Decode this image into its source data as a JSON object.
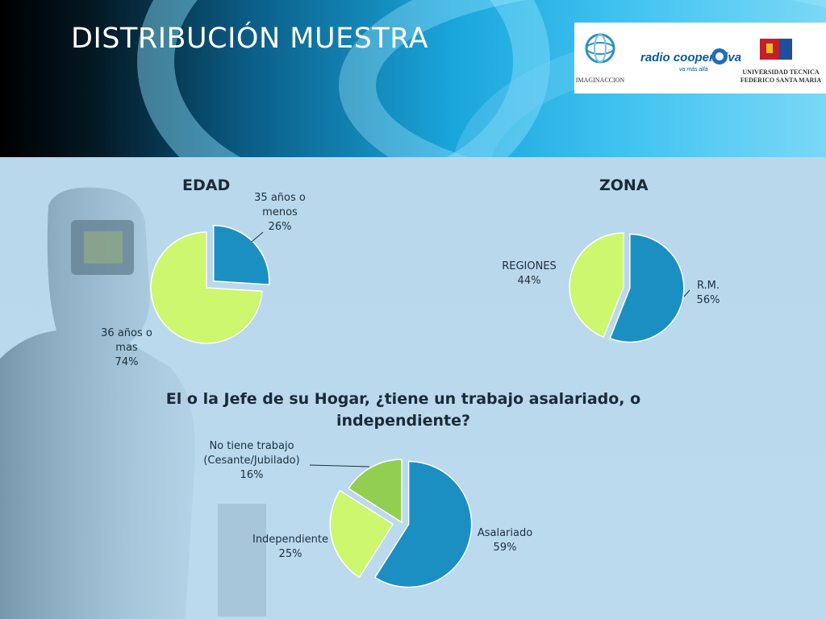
{
  "slide": {
    "title": "DISTRIBUCIÓN MUESTRA",
    "logos": {
      "imaginacion_text": "IMAGINACCION",
      "radio_text": "radio cooperativa",
      "radio_tagline": "va más allá",
      "university_line1": "UNIVERSIDAD TECNICA",
      "university_line2": "FEDERICO SANTA MARIA"
    }
  },
  "chart_data": [
    {
      "type": "pie",
      "title": "EDAD",
      "labels": [
        "35 años o menos",
        "36 años o mas"
      ],
      "values": [
        26,
        74
      ],
      "value_labels": [
        "26%",
        "74%"
      ],
      "colors": [
        "#1b8fc2",
        "#ccf76e"
      ],
      "label_text": [
        "35 años o\nmenos\n26%",
        "36 años o\nmas\n74%"
      ]
    },
    {
      "type": "pie",
      "title": "ZONA",
      "labels": [
        "R.M.",
        "REGIONES"
      ],
      "values": [
        56,
        44
      ],
      "value_labels": [
        "56%",
        "44%"
      ],
      "colors": [
        "#1b8fc2",
        "#ccf76e"
      ],
      "label_text": [
        "R.M.\n56%",
        "REGIONES\n44%"
      ]
    },
    {
      "type": "pie",
      "title": "El o la Jefe de su Hogar, ¿tiene un trabajo asalariado, o independiente?",
      "labels": [
        "Asalariado",
        "Independiente",
        "No tiene trabajo (Cesante/Jubilado)"
      ],
      "values": [
        59,
        25,
        16
      ],
      "value_labels": [
        "59%",
        "25%",
        "16%"
      ],
      "colors": [
        "#1b8fc2",
        "#ccf76e",
        "#92cf50"
      ],
      "label_text": [
        "Asalariado\n59%",
        "Independiente\n25%",
        "No tiene trabajo\n(Cesante/Jubilado)\n16%"
      ]
    }
  ]
}
